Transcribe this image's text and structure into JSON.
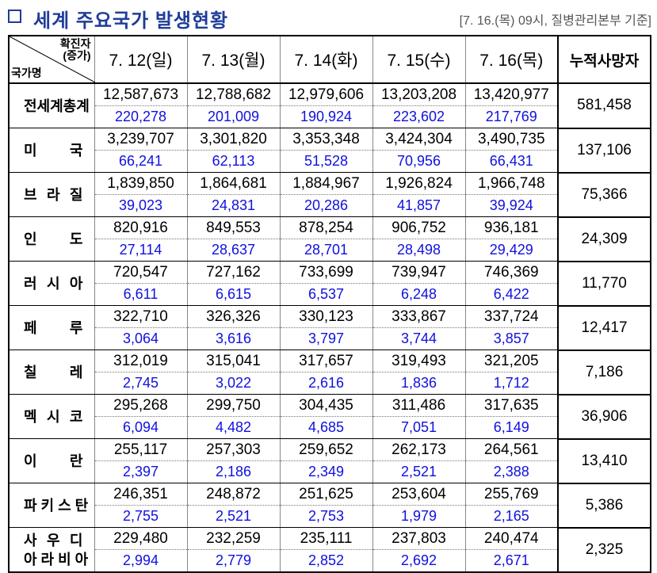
{
  "header": {
    "title": "세계 주요국가 발생현황",
    "source": "[7. 16.(목) 09시, 질병관리본부 기준]"
  },
  "table": {
    "corner_top": "확진자",
    "corner_sub": "(증가)",
    "corner_bottom": "국가명",
    "dates": [
      "7. 12(일)",
      "7. 13(월)",
      "7. 14(화)",
      "7. 15(수)",
      "7. 16(목)"
    ],
    "deaths_header": "누적사망자",
    "rows": [
      {
        "country": [
          "전세계총계"
        ],
        "confirmed": [
          "12,587,673",
          "12,788,682",
          "12,979,606",
          "13,203,208",
          "13,420,977"
        ],
        "increase": [
          "220,278",
          "201,009",
          "190,924",
          "223,602",
          "217,769"
        ],
        "deaths": "581,458"
      },
      {
        "country": [
          "미 국"
        ],
        "confirmed": [
          "3,239,707",
          "3,301,820",
          "3,353,348",
          "3,424,304",
          "3,490,735"
        ],
        "increase": [
          "66,241",
          "62,113",
          "51,528",
          "70,956",
          "66,431"
        ],
        "deaths": "137,106"
      },
      {
        "country": [
          "브 라 질"
        ],
        "confirmed": [
          "1,839,850",
          "1,864,681",
          "1,884,967",
          "1,926,824",
          "1,966,748"
        ],
        "increase": [
          "39,023",
          "24,831",
          "20,286",
          "41,857",
          "39,924"
        ],
        "deaths": "75,366"
      },
      {
        "country": [
          "인 도"
        ],
        "confirmed": [
          "820,916",
          "849,553",
          "878,254",
          "906,752",
          "936,181"
        ],
        "increase": [
          "27,114",
          "28,637",
          "28,701",
          "28,498",
          "29,429"
        ],
        "deaths": "24,309"
      },
      {
        "country": [
          "러 시 아"
        ],
        "confirmed": [
          "720,547",
          "727,162",
          "733,699",
          "739,947",
          "746,369"
        ],
        "increase": [
          "6,611",
          "6,615",
          "6,537",
          "6,248",
          "6,422"
        ],
        "deaths": "11,770"
      },
      {
        "country": [
          "페 루"
        ],
        "confirmed": [
          "322,710",
          "326,326",
          "330,123",
          "333,867",
          "337,724"
        ],
        "increase": [
          "3,064",
          "3,616",
          "3,797",
          "3,744",
          "3,857"
        ],
        "deaths": "12,417"
      },
      {
        "country": [
          "칠 레"
        ],
        "confirmed": [
          "312,019",
          "315,041",
          "317,657",
          "319,493",
          "321,205"
        ],
        "increase": [
          "2,745",
          "3,022",
          "2,616",
          "1,836",
          "1,712"
        ],
        "deaths": "7,186"
      },
      {
        "country": [
          "멕 시 코"
        ],
        "confirmed": [
          "295,268",
          "299,750",
          "304,435",
          "311,486",
          "317,635"
        ],
        "increase": [
          "6,094",
          "4,482",
          "4,685",
          "7,051",
          "6,149"
        ],
        "deaths": "36,906"
      },
      {
        "country": [
          "이 란"
        ],
        "confirmed": [
          "255,117",
          "257,303",
          "259,652",
          "262,173",
          "264,561"
        ],
        "increase": [
          "2,397",
          "2,186",
          "2,349",
          "2,521",
          "2,388"
        ],
        "deaths": "13,410"
      },
      {
        "country": [
          "파 키 스 탄"
        ],
        "confirmed": [
          "246,351",
          "248,872",
          "251,625",
          "253,604",
          "255,769"
        ],
        "increase": [
          "2,755",
          "2,521",
          "2,753",
          "1,979",
          "2,165"
        ],
        "deaths": "5,386"
      },
      {
        "country": [
          "사 우 디",
          "아 라 비 아"
        ],
        "confirmed": [
          "229,480",
          "232,259",
          "235,111",
          "237,803",
          "240,474"
        ],
        "increase": [
          "2,994",
          "2,779",
          "2,852",
          "2,692",
          "2,671"
        ],
        "deaths": "2,325"
      }
    ]
  }
}
